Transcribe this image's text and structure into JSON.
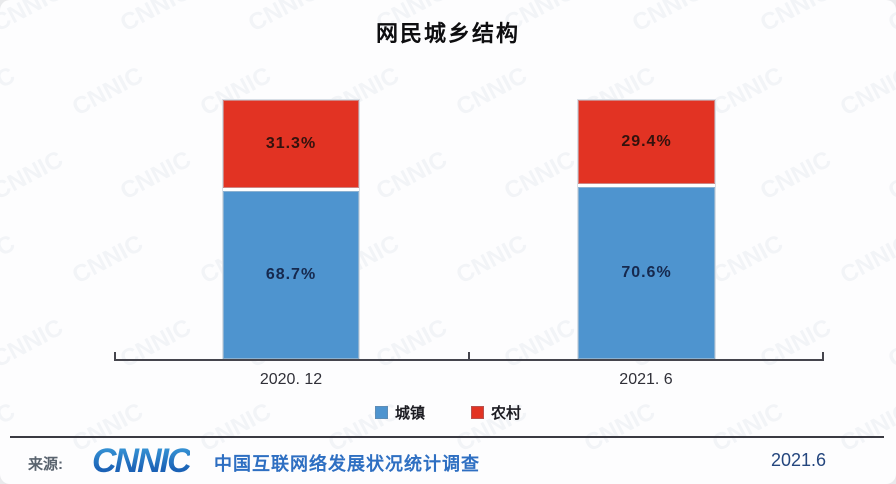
{
  "title": "网民城乡结构",
  "chart_data": {
    "type": "bar",
    "subtype": "stacked-100-percent",
    "categories": [
      "2020.12",
      "2021.6"
    ],
    "tick_labels": [
      "2020. 12",
      "2021. 6"
    ],
    "series": [
      {
        "name": "城镇",
        "color": "#4e94cf",
        "label_color": "#16294e",
        "values": [
          68.7,
          70.6
        ]
      },
      {
        "name": "农村",
        "color": "#e23323",
        "label_color": "#33120d",
        "values": [
          31.3,
          29.4
        ]
      }
    ],
    "value_label_format": "percent-one-decimal",
    "ylim": [
      0,
      100
    ],
    "grid": false,
    "legend_position": "bottom",
    "stack_order_top_to_bottom": [
      "农村",
      "城镇"
    ]
  },
  "watermark": {
    "text": "CNNIC"
  },
  "footer": {
    "source_label": "来源:",
    "logo_text": "CNNIC",
    "source_text": "中国互联网络发展状况统计调查",
    "date": "2021.6"
  },
  "colors": {
    "axis": "#45454d",
    "title": "#0e0e10",
    "divider": "#3a3a42"
  }
}
